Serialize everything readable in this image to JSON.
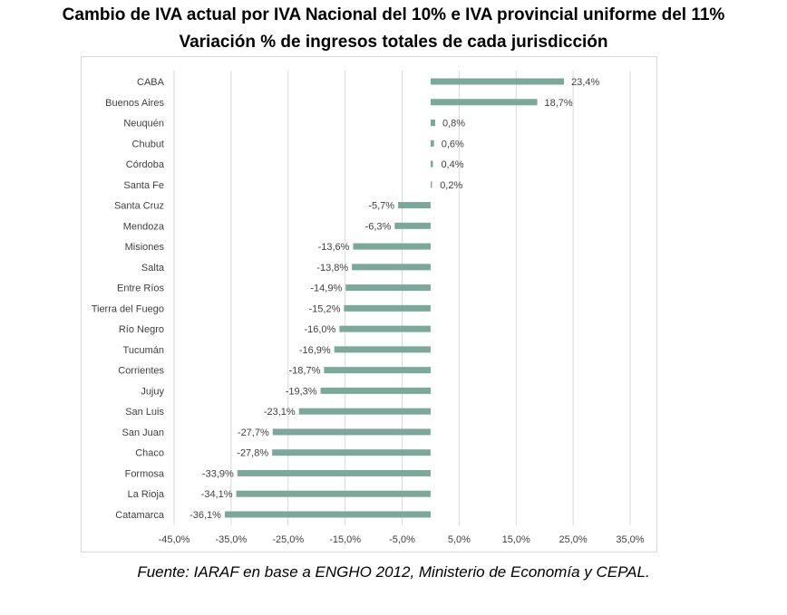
{
  "chart_data": {
    "type": "bar",
    "orientation": "horizontal",
    "title": "Cambio de IVA actual por IVA Nacional del 10% e IVA provincial uniforme del 11%",
    "subtitle": "Variación % de ingresos totales de cada jurisdicción",
    "categories": [
      "CABA",
      "Buenos Aires",
      "Neuquén",
      "Chubut",
      "Córdoba",
      "Santa Fe",
      "Santa Cruz",
      "Mendoza",
      "Misiones",
      "Salta",
      "Entre Ríos",
      "Tierra del Fuego",
      "Río Negro",
      "Tucumán",
      "Corrientes",
      "Jujuy",
      "San Luis",
      "San Juan",
      "Chaco",
      "Formosa",
      "La Rioja",
      "Catamarca"
    ],
    "values": [
      23.4,
      18.7,
      0.8,
      0.6,
      0.4,
      0.2,
      -5.7,
      -6.3,
      -13.6,
      -13.8,
      -14.9,
      -15.2,
      -16.0,
      -16.9,
      -18.7,
      -19.3,
      -23.1,
      -27.7,
      -27.8,
      -33.9,
      -34.1,
      -36.1
    ],
    "data_labels": [
      "23,4%",
      "18,7%",
      "0,8%",
      "0,6%",
      "0,4%",
      "0,2%",
      "-5,7%",
      "-6,3%",
      "-13,6%",
      "-13,8%",
      "-14,9%",
      "-15,2%",
      "-16,0%",
      "-16,9%",
      "-18,7%",
      "-19,3%",
      "-23,1%",
      "-27,7%",
      "-27,8%",
      "-33,9%",
      "-34,1%",
      "-36,1%"
    ],
    "xticks": [
      "-45,0%",
      "-35,0%",
      "-25,0%",
      "-15,0%",
      "-5,0%",
      "5,0%",
      "15,0%",
      "25,0%",
      "35,0%"
    ],
    "xtick_values": [
      -45,
      -35,
      -25,
      -15,
      -5,
      5,
      15,
      25,
      35
    ],
    "xlim": [
      -45,
      35
    ],
    "grid": true,
    "bar_color": "#7aa89a",
    "grid_color": "#d9d9d9",
    "text_color": "#404040"
  },
  "source": "Fuente: IARAF en base a ENGHO 2012, Ministerio de Economía y CEPAL."
}
